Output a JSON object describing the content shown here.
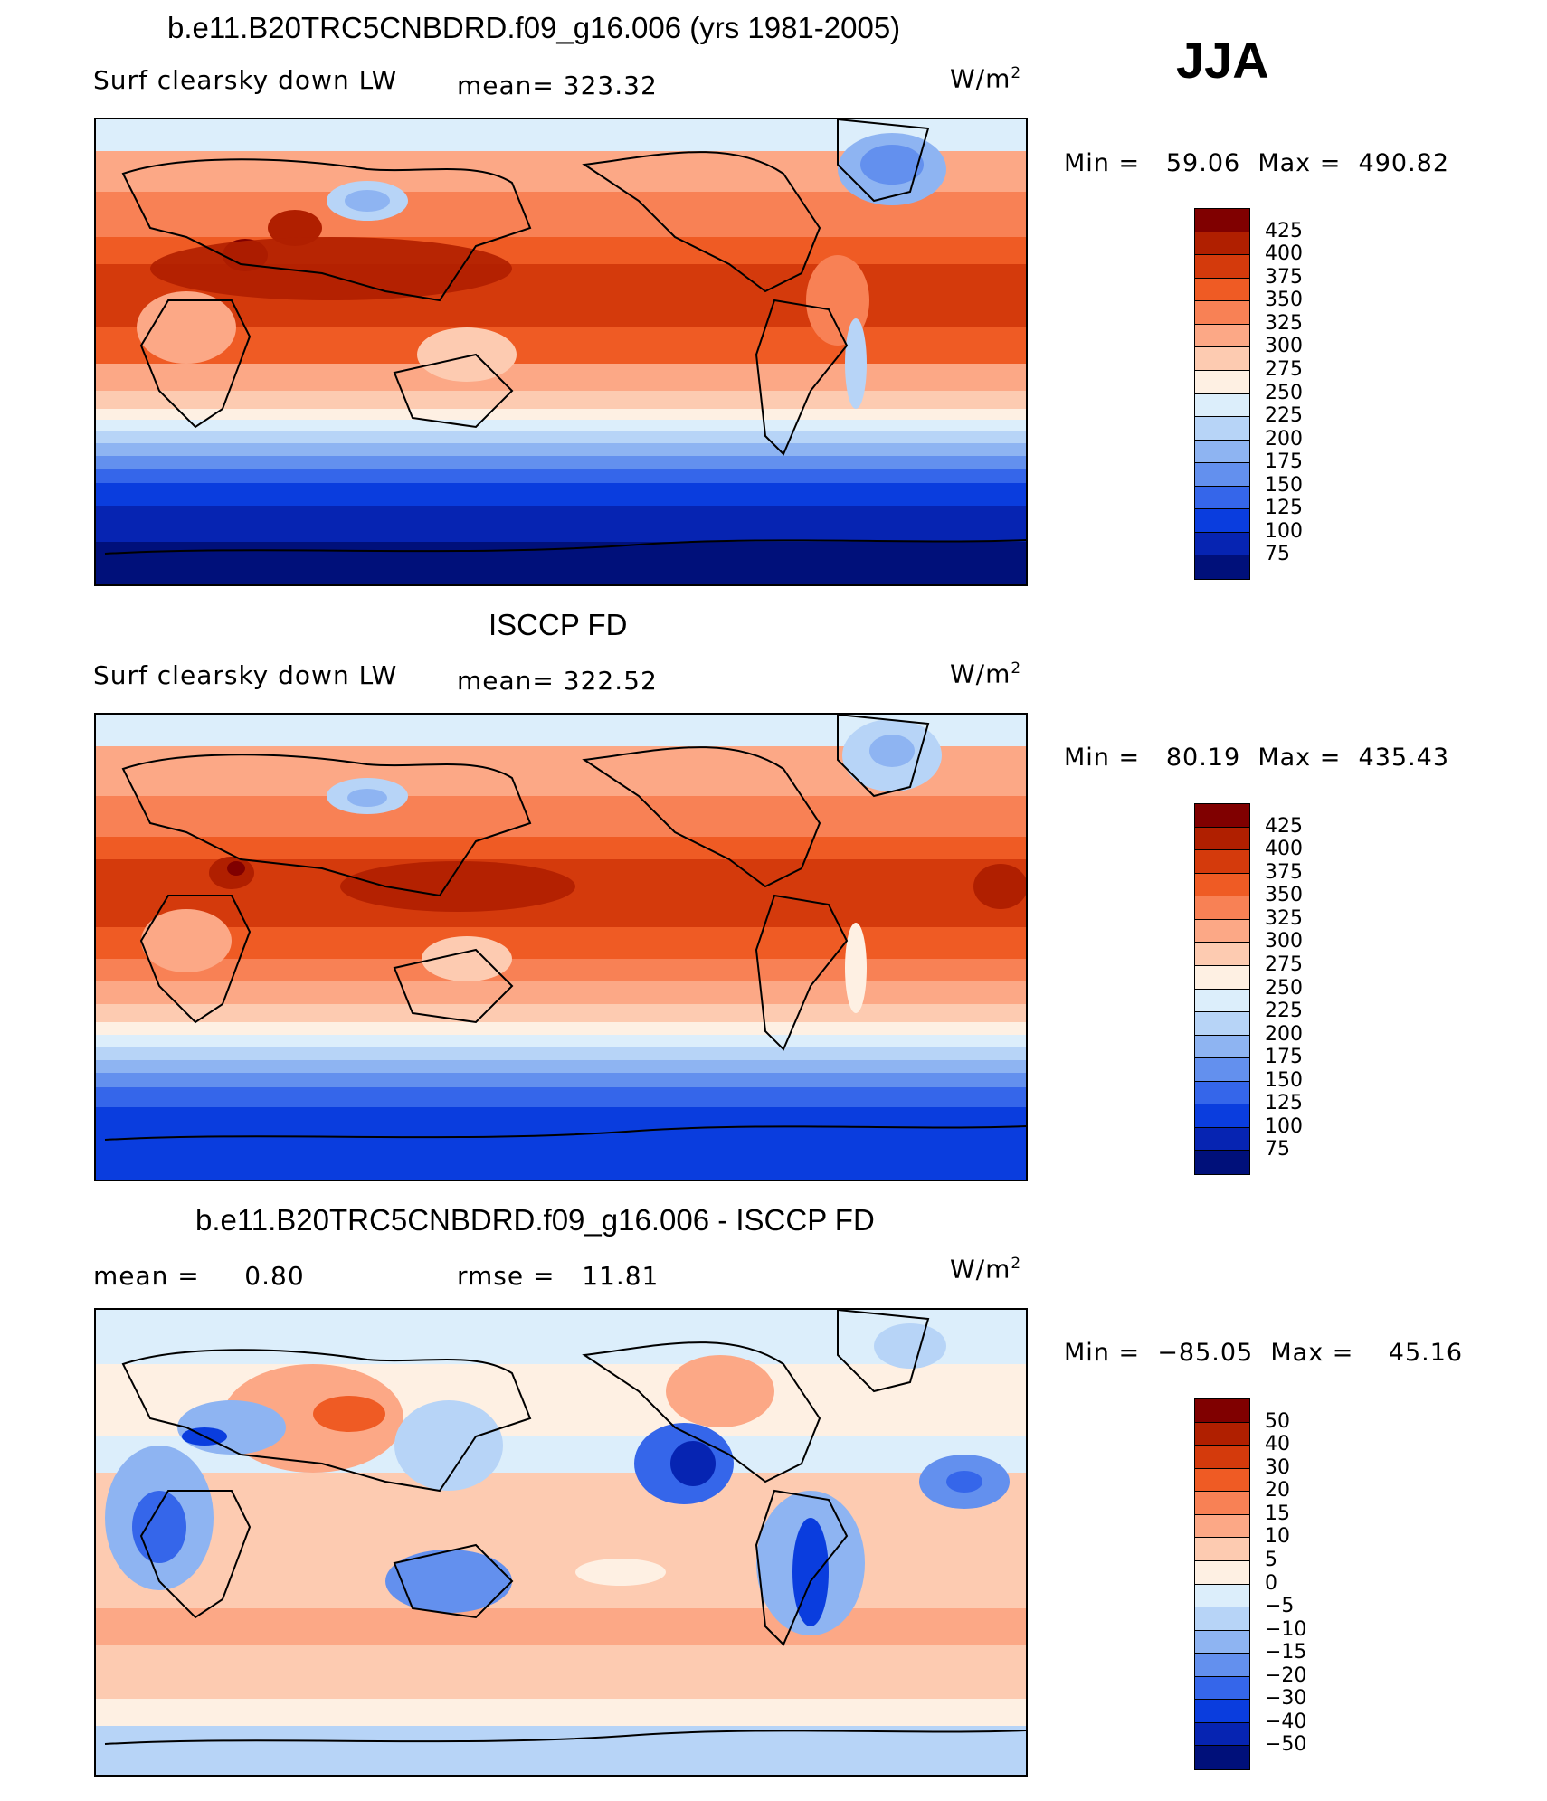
{
  "season": "JJA",
  "panels": [
    {
      "title": "b.e11.B20TRC5CNBDRD.f09_g16.006 (yrs 1981-2005)",
      "left_label": "Surf clearsky down LW",
      "stat_label": "mean=",
      "stat_value": "323.32",
      "units": "W/m",
      "units_sup": "2",
      "min_label": "Min =",
      "min_value": "59.06",
      "max_label": "Max =",
      "max_value": "490.82",
      "levels": [
        "425",
        "400",
        "375",
        "350",
        "325",
        "300",
        "275",
        "250",
        "225",
        "200",
        "175",
        "150",
        "125",
        "100",
        "75"
      ],
      "colors": [
        "#800000",
        "#b01f00",
        "#d43a0c",
        "#ef5b24",
        "#f88155",
        "#fca886",
        "#fdcbb1",
        "#fef0e3",
        "#dceefb",
        "#b7d4f7",
        "#8eb4f2",
        "#6390ee",
        "#3566ea",
        "#0a3dde",
        "#0624b2",
        "#00107a"
      ]
    },
    {
      "title": "ISCCP FD",
      "left_label": "Surf clearsky down LW",
      "stat_label": "mean=",
      "stat_value": "322.52",
      "units": "W/m",
      "units_sup": "2",
      "min_label": "Min =",
      "min_value": "80.19",
      "max_label": "Max =",
      "max_value": "435.43",
      "levels": [
        "425",
        "400",
        "375",
        "350",
        "325",
        "300",
        "275",
        "250",
        "225",
        "200",
        "175",
        "150",
        "125",
        "100",
        "75"
      ],
      "colors": [
        "#800000",
        "#b01f00",
        "#d43a0c",
        "#ef5b24",
        "#f88155",
        "#fca886",
        "#fdcbb1",
        "#fef0e3",
        "#dceefb",
        "#b7d4f7",
        "#8eb4f2",
        "#6390ee",
        "#3566ea",
        "#0a3dde",
        "#0624b2",
        "#00107a"
      ]
    },
    {
      "title": "b.e11.B20TRC5CNBDRD.f09_g16.006 - ISCCP FD",
      "left_label": "mean =",
      "left_value": "0.80",
      "stat_label": "rmse =",
      "stat_value": "11.81",
      "units": "W/m",
      "units_sup": "2",
      "min_label": "Min =",
      "min_value": "−85.05",
      "max_label": "Max =",
      "max_value": "45.16",
      "levels": [
        "50",
        "40",
        "30",
        "20",
        "15",
        "10",
        "5",
        "0",
        "−5",
        "−10",
        "−15",
        "−20",
        "−30",
        "−40",
        "−50"
      ],
      "colors": [
        "#800000",
        "#b01f00",
        "#d43a0c",
        "#ef5b24",
        "#f88155",
        "#fca886",
        "#fdcbb1",
        "#fef0e3",
        "#dceefb",
        "#b7d4f7",
        "#8eb4f2",
        "#6390ee",
        "#3566ea",
        "#0a3dde",
        "#0624b2",
        "#00107a"
      ]
    }
  ]
}
